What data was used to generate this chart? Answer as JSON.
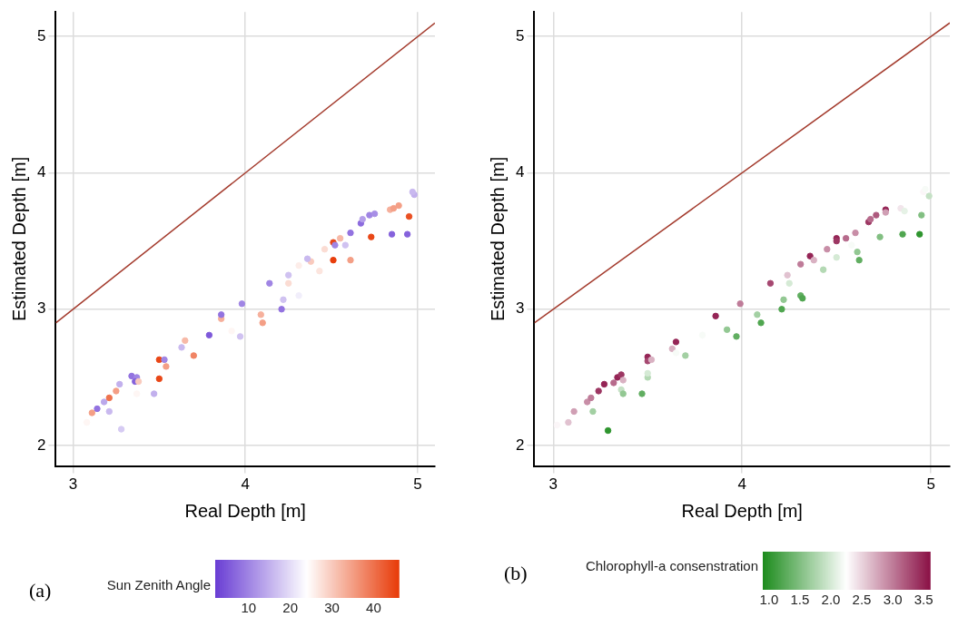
{
  "chart_data": [
    {
      "type": "scatter",
      "xlabel": "Real Depth [m]",
      "ylabel": "Estimated Depth [m]",
      "clabel": "Sun Zenith Angle",
      "annotations": [
        "(a)"
      ],
      "xlim": [
        2.9,
        5.1
      ],
      "xticks": [
        3,
        4,
        5
      ],
      "ylim": [
        1.85,
        5.18
      ],
      "yticks": [
        2,
        3,
        4,
        5
      ],
      "clim": [
        2,
        46
      ],
      "cticks": [
        10,
        20,
        30,
        40
      ],
      "grid": true,
      "series": [
        {
          "type": "scatter",
          "marker": "circle",
          "colors": [
            "#fef6f4",
            "#f49f86",
            "#9373e0",
            "#bba8eb",
            "#c9b9ef",
            "#ee734e",
            "#f49f86",
            "#c2b0ed",
            "#d6cbf3",
            "#9373e0",
            "#a085e4",
            "#8562dc",
            "#f9cabd",
            "#fef6f4",
            "#c2b0ed",
            "#e94717",
            "#a085e4",
            "#e94717",
            "#f49f86",
            "#c9b9ef",
            "#f7b9a7",
            "#f08464",
            "#7e59da",
            "#f6b09c",
            "#fef6f4",
            "#d0c2f1",
            "#f49f86",
            "#9373e0",
            "#a085e4",
            "#f6b09c",
            "#9373e0",
            "#d0c2f1",
            "#f1eefb",
            "#a085e4",
            "#fbdcd3",
            "#d0c2f1",
            "#fdede9",
            "#fce5de",
            "#f9cabd",
            "#c9b9ef",
            "#fbdcd3",
            "#e83e0c",
            "#e94717",
            "#a085e4",
            "#f7b9a7",
            "#9373e0",
            "#f49f86",
            "#d0c2f1",
            "#8c6bde",
            "#b59fea",
            "#a085e4",
            "#a78ee6",
            "#e94717",
            "#f6b09c",
            "#f49f86",
            "#f49f86",
            "#8562dc",
            "#8562dc",
            "#ea5022",
            "#c2b0ed",
            "#c9b9ef"
          ],
          "x": [
            3.08,
            3.11,
            3.14,
            3.18,
            3.21,
            3.21,
            3.25,
            3.27,
            3.28,
            3.34,
            3.37,
            3.36,
            3.38,
            3.37,
            3.47,
            3.5,
            3.53,
            3.5,
            3.54,
            3.63,
            3.65,
            3.7,
            3.79,
            3.86,
            3.92,
            3.97,
            4.1,
            3.86,
            3.98,
            4.09,
            4.21,
            4.22,
            4.31,
            4.14,
            4.25,
            4.25,
            4.31,
            4.43,
            4.38,
            4.36,
            4.46,
            4.51,
            4.51,
            4.52,
            4.55,
            4.61,
            4.61,
            4.58,
            4.67,
            4.68,
            4.72,
            4.75,
            4.73,
            4.84,
            4.86,
            4.89,
            4.85,
            4.94,
            4.95,
            4.98,
            4.97
          ],
          "values": [
            2.17,
            2.24,
            2.27,
            2.32,
            2.25,
            2.35,
            2.4,
            2.45,
            2.12,
            2.51,
            2.5,
            2.47,
            2.47,
            2.38,
            2.38,
            2.63,
            2.63,
            2.49,
            2.58,
            2.72,
            2.77,
            2.66,
            2.81,
            2.93,
            2.84,
            2.8,
            2.9,
            2.96,
            3.04,
            2.96,
            3.0,
            3.07,
            3.1,
            3.19,
            3.19,
            3.25,
            3.32,
            3.28,
            3.35,
            3.37,
            3.44,
            3.36,
            3.49,
            3.47,
            3.52,
            3.56,
            3.36,
            3.47,
            3.63,
            3.66,
            3.69,
            3.7,
            3.53,
            3.73,
            3.74,
            3.76,
            3.55,
            3.55,
            3.68,
            3.84,
            3.86
          ],
          "cvalues": [
            25,
            35,
            8,
            14,
            16,
            40,
            35,
            15,
            18,
            8,
            10,
            6,
            30,
            25,
            15,
            45,
            10,
            45,
            35,
            16,
            32,
            38,
            5,
            33,
            25,
            17,
            35,
            8,
            10,
            33,
            8,
            17,
            22,
            10,
            28,
            17,
            26,
            27,
            30,
            16,
            28,
            46,
            45,
            10,
            32,
            8,
            35,
            17,
            7,
            13,
            10,
            11,
            45,
            33,
            35,
            35,
            6,
            6,
            44,
            15,
            16
          ]
        },
        {
          "type": "line",
          "x": [
            2.9,
            5.1
          ],
          "values": [
            2.9,
            5.1
          ],
          "color": "#a33a2c"
        }
      ]
    },
    {
      "type": "scatter",
      "xlabel": "Real Depth [m]",
      "ylabel": "Estimated Depth [m]",
      "clabel": "Chlorophyll-a consenstration",
      "annotations": [
        "(b)"
      ],
      "xlim": [
        2.9,
        5.1
      ],
      "xticks": [
        3,
        4,
        5
      ],
      "ylim": [
        1.85,
        5.18
      ],
      "yticks": [
        2,
        3,
        4,
        5
      ],
      "clim": [
        0.9,
        3.6
      ],
      "cticks": [
        {
          "value": 1,
          "label": "1.0"
        },
        1.5,
        {
          "value": 2,
          "label": "2.0"
        },
        2.5,
        {
          "value": 3,
          "label": "3.0"
        },
        3.5
      ],
      "grid": true,
      "series": [
        {
          "type": "scatter",
          "marker": "circle",
          "colors": [
            "#fbf6f8",
            "#e1c2d0",
            "#d09fb5",
            "#c88ea7",
            "#bf7c99",
            "#a3d0a3",
            "#9d3763",
            "#952556",
            "#2f952f",
            "#b76b8c",
            "#952556",
            "#9d3763",
            "#d9b1c2",
            "#c5e1c5",
            "#93c893",
            "#61ae61",
            "#b4d9b4",
            "#d5ead5",
            "#952556",
            "#a64871",
            "#d9b1c2",
            "#d9b1c2",
            "#952556",
            "#f7fbf7",
            "#a3d0a3",
            "#f7fbf7",
            "#93c893",
            "#61ae61",
            "#50a650",
            "#952556",
            "#bf7c99",
            "#a3d0a3",
            "#50a650",
            "#93c893",
            "#61ae61",
            "#50a650",
            "#a64871",
            "#d5ead5",
            "#e1c2d0",
            "#bf7c99",
            "#952556",
            "#d9b1c2",
            "#b4d9b4",
            "#c88ea7",
            "#d5ead5",
            "#952556",
            "#9d3763",
            "#b76b8c",
            "#f7fbf7",
            "#93c893",
            "#61ae61",
            "#c88ea7",
            "#9d3763",
            "#b76b8c",
            "#ae5a7e",
            "#952556",
            "#d09fb5",
            "#82bf82",
            "#f2e5eb",
            "#e6f2e6",
            "#50a650",
            "#2f952f",
            "#82bf82",
            "#fbf6f8",
            "#f7fbf7",
            "#c5e1c5"
          ],
          "x": [
            3.02,
            3.08,
            3.11,
            3.18,
            3.2,
            3.21,
            3.24,
            3.27,
            3.29,
            3.32,
            3.34,
            3.36,
            3.37,
            3.36,
            3.37,
            3.47,
            3.5,
            3.5,
            3.5,
            3.5,
            3.52,
            3.63,
            3.65,
            3.65,
            3.7,
            3.79,
            3.92,
            3.97,
            4.1,
            3.86,
            3.99,
            4.08,
            4.21,
            4.22,
            4.31,
            4.32,
            4.15,
            4.25,
            4.24,
            4.31,
            4.36,
            4.38,
            4.43,
            4.45,
            4.5,
            4.5,
            4.5,
            4.55,
            4.58,
            4.61,
            4.62,
            4.6,
            4.67,
            4.68,
            4.71,
            4.76,
            4.76,
            4.73,
            4.84,
            4.86,
            4.85,
            4.94,
            4.95,
            4.96,
            4.97,
            4.99
          ],
          "values": [
            2.15,
            2.17,
            2.25,
            2.32,
            2.35,
            2.25,
            2.4,
            2.45,
            2.11,
            2.46,
            2.5,
            2.52,
            2.48,
            2.41,
            2.38,
            2.38,
            2.5,
            2.53,
            2.65,
            2.62,
            2.63,
            2.71,
            2.76,
            2.68,
            2.66,
            2.81,
            2.85,
            2.8,
            2.9,
            2.95,
            3.04,
            2.96,
            3.0,
            3.07,
            3.1,
            3.08,
            3.19,
            3.19,
            3.25,
            3.33,
            3.39,
            3.36,
            3.29,
            3.44,
            3.38,
            3.52,
            3.5,
            3.52,
            3.47,
            3.42,
            3.36,
            3.56,
            3.64,
            3.66,
            3.69,
            3.73,
            3.71,
            3.53,
            3.74,
            3.72,
            3.55,
            3.55,
            3.69,
            3.86,
            3.88,
            3.83
          ],
          "cvalues": [
            2.3,
            2.6,
            2.8,
            2.9,
            3.0,
            1.7,
            3.4,
            3.5,
            1.0,
            3.1,
            3.5,
            3.4,
            2.7,
            1.9,
            1.6,
            1.3,
            1.8,
            2.0,
            3.5,
            3.3,
            2.7,
            2.7,
            3.5,
            2.2,
            1.7,
            2.2,
            1.6,
            1.3,
            1.2,
            3.5,
            3.0,
            1.7,
            1.2,
            1.6,
            1.3,
            1.2,
            3.3,
            2.0,
            2.6,
            3.0,
            3.5,
            2.7,
            1.8,
            2.9,
            2.0,
            3.5,
            3.4,
            3.1,
            2.2,
            1.6,
            1.3,
            2.9,
            3.4,
            3.1,
            3.2,
            3.5,
            2.8,
            1.5,
            2.4,
            2.1,
            1.2,
            1.0,
            1.5,
            2.3,
            2.2,
            1.9
          ]
        },
        {
          "type": "line",
          "x": [
            2.9,
            5.1
          ],
          "values": [
            2.9,
            5.1
          ],
          "color": "#a33a2c"
        }
      ]
    }
  ]
}
